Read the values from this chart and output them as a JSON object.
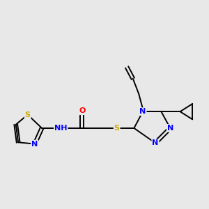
{
  "background_color": "#e8e8e8",
  "bond_color": "#000000",
  "atom_colors": {
    "N": "#0000ff",
    "S": "#ccaa00",
    "O": "#ff0000",
    "H": "#000000",
    "C": "#000000"
  },
  "figsize": [
    3.0,
    3.0
  ],
  "dpi": 100
}
